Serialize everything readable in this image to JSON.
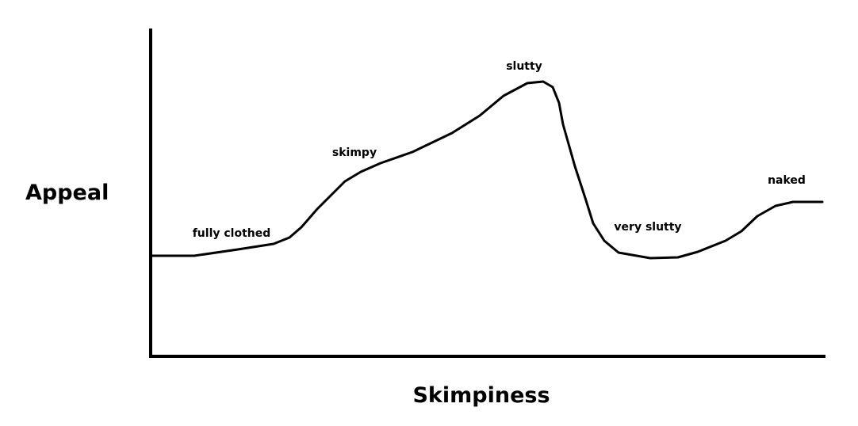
{
  "axes": {
    "y_label": "Appeal",
    "x_label": "Skimpiness"
  },
  "annotations": [
    "fully clothed",
    "skimpy",
    "slutty",
    "very slutty",
    "naked"
  ]
}
